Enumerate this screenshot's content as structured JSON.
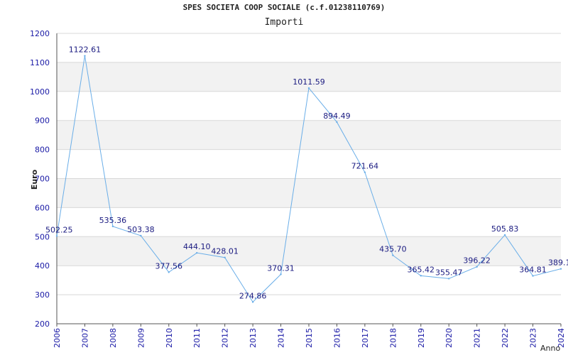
{
  "chart_data": {
    "type": "line",
    "title": "SPES SOCIETA COOP SOCIALE (c.f.01238110769)",
    "subtitle": "Importi",
    "xlabel": "Anno",
    "ylabel": "Euro",
    "categories": [
      "2006",
      "2007",
      "2008",
      "2009",
      "2010",
      "2011",
      "2012",
      "2013",
      "2014",
      "2015",
      "2016",
      "2017",
      "2018",
      "2019",
      "2020",
      "2021",
      "2022",
      "2023",
      "2024"
    ],
    "series": [
      {
        "values": [
          502.25,
          1122.61,
          535.36,
          503.38,
          377.56,
          444.1,
          428.01,
          274.86,
          370.31,
          1011.59,
          894.49,
          721.64,
          435.7,
          365.42,
          355.47,
          396.22,
          505.83,
          364.81,
          389.1
        ],
        "labels": [
          "502.25",
          "1122.61",
          "535.36",
          "503.38",
          "377.56",
          "444.10",
          "428.01",
          "274.86",
          "370.31",
          "1011.59",
          "894.49",
          "721.64",
          "435.70",
          "365.42",
          "355.47",
          "396.22",
          "505.83",
          "364.81",
          "389.1"
        ]
      }
    ],
    "ylim": [
      200,
      1200
    ],
    "yticks": [
      200,
      300,
      400,
      500,
      600,
      700,
      800,
      900,
      1000,
      1100,
      1200
    ],
    "grid": true,
    "colors": {
      "line": "#6aaee8",
      "band": "#f2f2f2",
      "grid": "#d8d8d8",
      "tick_text": "#1a1aa6",
      "label_text": "#1a1a80"
    }
  }
}
